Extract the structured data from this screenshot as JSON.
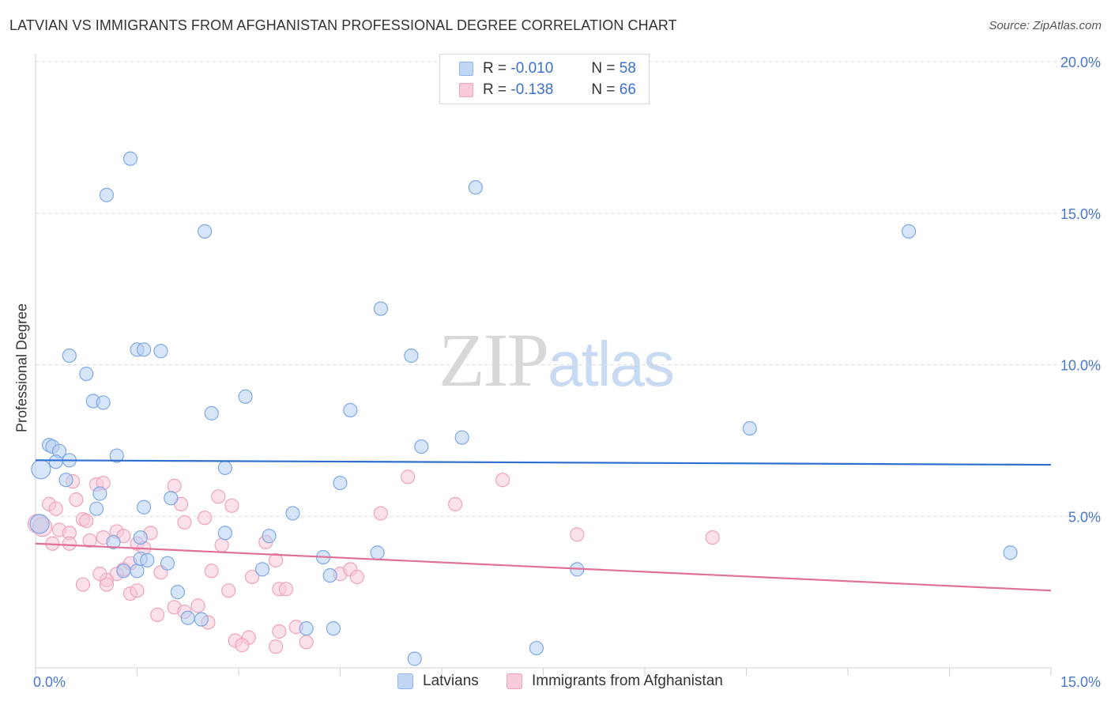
{
  "header": {
    "title": "LATVIAN VS IMMIGRANTS FROM AFGHANISTAN PROFESSIONAL DEGREE CORRELATION CHART",
    "source": "Source: ZipAtlas.com"
  },
  "watermark": {
    "zip": "ZIP",
    "atlas": "atlas"
  },
  "legend_top": {
    "rows": [
      {
        "r_label": "R =",
        "r_value": "-0.010",
        "n_label": "N =",
        "n_value": "58",
        "color": "#8fb5ec",
        "fill": "#c0d6f5"
      },
      {
        "r_label": "R =",
        "r_value": "-0.138",
        "n_label": "N =",
        "n_value": "66",
        "color": "#f2a0bb",
        "fill": "#f9cad9"
      }
    ]
  },
  "legend_bottom": {
    "items": [
      {
        "label": "Latvians",
        "color": "#8fb5ec",
        "fill": "#c0d6f5"
      },
      {
        "label": "Immigrants from Afghanistan",
        "color": "#f2a0bb",
        "fill": "#f9cad9"
      }
    ]
  },
  "chart_data": {
    "type": "scatter",
    "title": "LATVIAN VS IMMIGRANTS FROM AFGHANISTAN PROFESSIONAL DEGREE CORRELATION CHART",
    "xlabel": "",
    "ylabel": "Professional Degree",
    "xlim": [
      0,
      15
    ],
    "ylim": [
      0,
      20
    ],
    "x_tick_labels": [
      {
        "value": 0,
        "label": "0.0%"
      },
      {
        "value": 15,
        "label": "15.0%"
      }
    ],
    "y_tick_labels": [
      {
        "value": 5,
        "label": "5.0%"
      },
      {
        "value": 10,
        "label": "10.0%"
      },
      {
        "value": 15,
        "label": "15.0%"
      },
      {
        "value": 20,
        "label": "20.0%"
      }
    ],
    "series": [
      {
        "name": "Latvians",
        "stroke": "#7ea8e6",
        "fill": "#b7d0f3",
        "trend": {
          "x": [
            0,
            15
          ],
          "y": [
            6.85,
            6.7
          ],
          "color": "#2f6fd0"
        },
        "points": [
          [
            0.08,
            6.55
          ],
          [
            0.06,
            4.75
          ],
          [
            0.2,
            7.35
          ],
          [
            0.25,
            7.3
          ],
          [
            0.35,
            7.15
          ],
          [
            0.3,
            6.8
          ],
          [
            0.5,
            6.85
          ],
          [
            0.45,
            6.2
          ],
          [
            0.5,
            10.3
          ],
          [
            0.75,
            9.7
          ],
          [
            0.85,
            8.8
          ],
          [
            1.0,
            8.75
          ],
          [
            1.05,
            15.6
          ],
          [
            1.4,
            16.8
          ],
          [
            1.5,
            10.5
          ],
          [
            1.6,
            10.5
          ],
          [
            1.85,
            10.45
          ],
          [
            1.2,
            7.0
          ],
          [
            1.6,
            5.3
          ],
          [
            2.0,
            5.6
          ],
          [
            1.55,
            4.3
          ],
          [
            1.15,
            4.15
          ],
          [
            0.9,
            5.25
          ],
          [
            0.95,
            5.75
          ],
          [
            2.5,
            14.4
          ],
          [
            2.6,
            8.4
          ],
          [
            2.8,
            6.6
          ],
          [
            3.1,
            8.95
          ],
          [
            3.8,
            5.1
          ],
          [
            3.45,
            4.35
          ],
          [
            3.35,
            3.25
          ],
          [
            4.25,
            3.65
          ],
          [
            4.35,
            3.05
          ],
          [
            4.4,
            1.3
          ],
          [
            4.0,
            1.3
          ],
          [
            4.5,
            6.1
          ],
          [
            4.65,
            8.5
          ],
          [
            5.05,
            3.8
          ],
          [
            5.1,
            11.85
          ],
          [
            5.55,
            10.3
          ],
          [
            5.7,
            7.3
          ],
          [
            6.3,
            7.6
          ],
          [
            6.5,
            15.85
          ],
          [
            7.4,
            0.65
          ],
          [
            8.0,
            3.25
          ],
          [
            1.5,
            3.2
          ],
          [
            1.55,
            3.6
          ],
          [
            1.95,
            3.45
          ],
          [
            2.1,
            2.5
          ],
          [
            2.25,
            1.65
          ],
          [
            2.45,
            1.6
          ],
          [
            5.6,
            0.3
          ],
          [
            10.55,
            7.9
          ],
          [
            12.9,
            14.4
          ],
          [
            14.4,
            3.8
          ],
          [
            1.65,
            3.55
          ],
          [
            1.3,
            3.2
          ],
          [
            2.8,
            4.45
          ]
        ]
      },
      {
        "name": "Immigrants from Afghanistan",
        "stroke": "#f0a2bc",
        "fill": "#f8c8d8",
        "trend": {
          "x": [
            0,
            15
          ],
          "y": [
            4.1,
            2.55
          ],
          "color": "#e07098"
        },
        "points": [
          [
            0.03,
            4.75
          ],
          [
            0.1,
            4.65
          ],
          [
            0.2,
            5.4
          ],
          [
            0.3,
            5.25
          ],
          [
            0.35,
            4.55
          ],
          [
            0.5,
            4.45
          ],
          [
            0.55,
            6.15
          ],
          [
            0.6,
            5.55
          ],
          [
            0.7,
            4.9
          ],
          [
            0.75,
            4.85
          ],
          [
            0.9,
            6.05
          ],
          [
            1.0,
            6.1
          ],
          [
            0.8,
            4.2
          ],
          [
            0.5,
            4.1
          ],
          [
            0.25,
            4.1
          ],
          [
            1.0,
            4.3
          ],
          [
            1.2,
            4.5
          ],
          [
            1.3,
            4.35
          ],
          [
            1.5,
            4.1
          ],
          [
            1.6,
            3.95
          ],
          [
            1.7,
            4.45
          ],
          [
            2.05,
            6.0
          ],
          [
            2.15,
            5.4
          ],
          [
            2.2,
            4.8
          ],
          [
            2.5,
            4.95
          ],
          [
            2.7,
            5.65
          ],
          [
            2.9,
            5.35
          ],
          [
            2.75,
            4.05
          ],
          [
            3.4,
            4.15
          ],
          [
            3.55,
            3.55
          ],
          [
            3.2,
            3.0
          ],
          [
            3.6,
            2.6
          ],
          [
            3.7,
            2.6
          ],
          [
            3.85,
            1.35
          ],
          [
            3.55,
            0.7
          ],
          [
            4.0,
            0.85
          ],
          [
            4.5,
            3.1
          ],
          [
            4.65,
            3.25
          ],
          [
            4.75,
            3.0
          ],
          [
            5.1,
            5.1
          ],
          [
            5.5,
            6.3
          ],
          [
            6.2,
            5.4
          ],
          [
            6.9,
            6.2
          ],
          [
            8.0,
            4.4
          ],
          [
            10.0,
            4.3
          ],
          [
            1.2,
            3.1
          ],
          [
            1.3,
            3.25
          ],
          [
            1.4,
            3.45
          ],
          [
            1.05,
            2.9
          ],
          [
            1.05,
            2.75
          ],
          [
            1.4,
            2.45
          ],
          [
            1.5,
            2.55
          ],
          [
            1.8,
            1.75
          ],
          [
            2.05,
            2.0
          ],
          [
            2.2,
            1.85
          ],
          [
            2.4,
            2.05
          ],
          [
            2.6,
            3.2
          ],
          [
            2.85,
            2.55
          ],
          [
            2.95,
            0.9
          ],
          [
            3.15,
            1.0
          ],
          [
            3.05,
            0.75
          ],
          [
            3.6,
            1.2
          ],
          [
            0.95,
            3.1
          ],
          [
            0.7,
            2.75
          ],
          [
            2.55,
            1.5
          ],
          [
            1.85,
            3.15
          ]
        ]
      }
    ],
    "grid": true
  }
}
